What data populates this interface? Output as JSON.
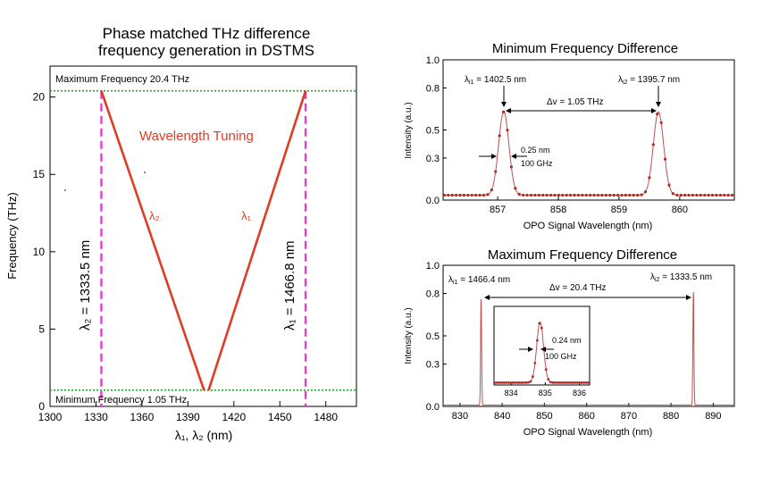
{
  "colors": {
    "tuning_line": "#e03b24",
    "boundary_dash": "#e040c8",
    "limit_dotted": "#2ea32e",
    "spectrum_line": "#c0504d",
    "spectrum_marker": "#b22a22",
    "axis": "#000000"
  },
  "chart_data": [
    {
      "type": "line",
      "title": "Phase matched THz difference frequency generation in DSTMS",
      "title_lines": [
        "Phase matched THz difference",
        "frequency generation in DSTMS"
      ],
      "xlabel": "λ₁, λ₂ (nm)",
      "ylabel": "Frequency (THz)",
      "xlim": [
        1300,
        1500
      ],
      "ylim": [
        0,
        22
      ],
      "xticks": [
        1300,
        1330,
        1360,
        1390,
        1420,
        1450,
        1480
      ],
      "yticks": [
        0,
        5,
        10,
        15,
        20
      ],
      "series": [
        {
          "name": "λ₂",
          "x": [
            1333.5,
            1400.5
          ],
          "y": [
            20.4,
            1.05
          ]
        },
        {
          "name": "λ₁",
          "x": [
            1403.5,
            1466.8
          ],
          "y": [
            1.05,
            20.4
          ]
        }
      ],
      "limits": {
        "max_label": "Maximum Frequency 20.4 THz",
        "max_value": 20.4,
        "min_label": "Minimum Frequency 1.05 THz",
        "min_value": 1.05
      },
      "boundaries": [
        {
          "label": "λ₂ = 1333.5 nm",
          "x": 1333.5
        },
        {
          "label": "λ₁ = 1466.8 nm",
          "x": 1466.8
        }
      ],
      "annotation": "Wavelength Tuning"
    },
    {
      "type": "line",
      "title": "Minimum Frequency Difference",
      "xlabel": "OPO Signal Wavelength (nm)",
      "ylabel": "Intensity (a.u.)",
      "xlim": [
        856.1,
        860.9
      ],
      "ylim": [
        0.0,
        1.0
      ],
      "xticks": [
        857,
        858,
        859,
        860
      ],
      "yticks": [
        "0.0",
        "0.3",
        "0.5",
        "0.8",
        "1.0"
      ],
      "peaks": [
        {
          "label_main": "λ",
          "label_sub": "i1",
          "label_value": " = 1402.5 nm",
          "x": 857.1,
          "height": 0.63
        },
        {
          "label_main": "λ",
          "label_sub": "i2",
          "label_value": " = 1395.7 nm",
          "x": 859.65,
          "height": 0.63
        }
      ],
      "baseline": 0.035,
      "delta_label": "Δv = 1.05 THz",
      "width_labels": [
        "0.25 nm",
        "100 GHz"
      ]
    },
    {
      "type": "line",
      "title": "Maximum Frequency Difference",
      "xlabel": "OPO Signal Wavelength (nm)",
      "ylabel": "Intensity (a.u.)",
      "xlim": [
        826,
        895
      ],
      "ylim": [
        0.0,
        1.0
      ],
      "xticks": [
        830,
        840,
        850,
        860,
        870,
        880,
        890
      ],
      "yticks": [
        "0.0",
        "0.3",
        "0.5",
        "0.8",
        "1.0"
      ],
      "peaks": [
        {
          "label_main": "λ",
          "label_sub": "i1",
          "label_value": " = 1466.4 nm",
          "x": 835,
          "height": 0.75
        },
        {
          "label_main": "λ",
          "label_sub": "i2",
          "label_value": " = 1333.5 nm",
          "x": 885.3,
          "height": 0.8
        }
      ],
      "delta_label": "Δv = 20.4 THz",
      "inset": {
        "xlim": [
          833.5,
          836.3
        ],
        "ylim": [
          0,
          1
        ],
        "xticks": [
          834,
          835,
          836
        ],
        "peak_x": 834.85,
        "peak_height": 0.8,
        "width_labels": [
          "0.24 nm",
          "100 GHz"
        ]
      }
    }
  ]
}
